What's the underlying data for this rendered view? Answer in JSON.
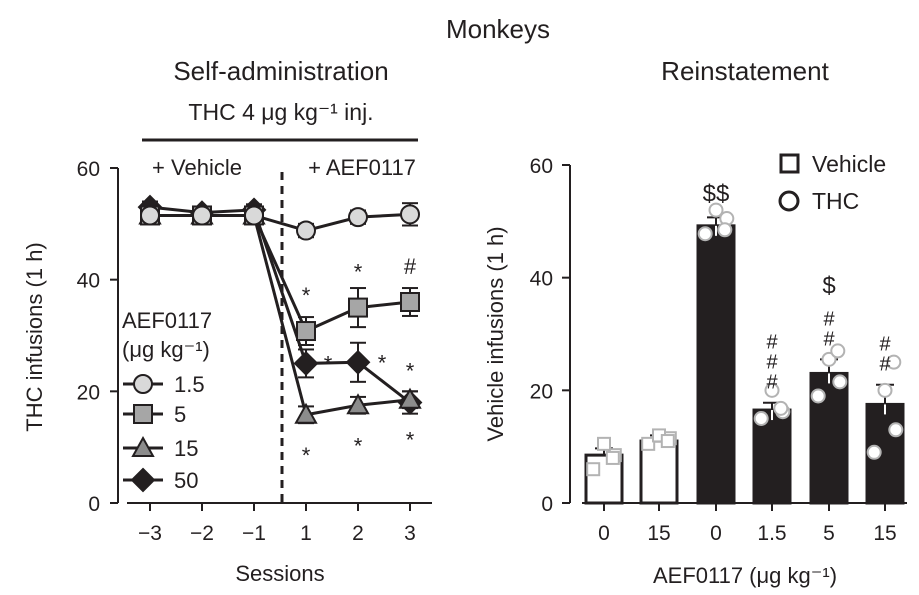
{
  "header": {
    "title": "Monkeys"
  },
  "colors": {
    "ink": "#231f20",
    "light_gray": "#d9d9d9",
    "mid_gray": "#a6a6a6",
    "dark_gray": "#8c8c8c",
    "black": "#231f20",
    "white": "#ffffff",
    "dot_gray": "#b3b3b3"
  },
  "chart_data": [
    {
      "type": "line",
      "title": "Self-administration",
      "subtitle": "THC 4 μg kg⁻¹ inj.",
      "xlabel": "Sessions",
      "ylabel": "THC infusions (1 h)",
      "x": [
        -3,
        -2,
        -1,
        1,
        2,
        3
      ],
      "xticks": [
        "−3",
        "−2",
        "−1",
        "1",
        "2",
        "3"
      ],
      "ylim": [
        0,
        60
      ],
      "yticks": [
        "0",
        "20",
        "40",
        "60"
      ],
      "phase_labels": [
        "+ Vehicle",
        "+ AEF0117"
      ],
      "legend": {
        "title_line1": "AEF0117",
        "title_line2": "(μg kg⁻¹)",
        "placement": "left"
      },
      "series": [
        {
          "name": "1.5",
          "marker": "circle",
          "fill": "#d9d9d9",
          "values": [
            51.5,
            51.5,
            51.5,
            48.8,
            51.2,
            51.7
          ],
          "errors": [
            1.5,
            1.2,
            1.5,
            1.2,
            1.2,
            2.0
          ],
          "annotations": [
            "",
            "",
            "",
            "",
            "",
            ""
          ]
        },
        {
          "name": "5",
          "marker": "square",
          "fill": "#a6a6a6",
          "values": [
            51.5,
            51.5,
            51.5,
            30.8,
            35.0,
            36.0
          ],
          "errors": [
            1.5,
            1.5,
            1.5,
            2.5,
            3.5,
            2.5
          ],
          "annotations": [
            "",
            "",
            "",
            "*",
            "*",
            "#"
          ]
        },
        {
          "name": "15",
          "marker": "triangle",
          "fill": "#8c8c8c",
          "values": [
            51.5,
            51.5,
            51.5,
            15.8,
            17.5,
            18.5
          ],
          "errors": [
            1.5,
            1.5,
            1.5,
            1.5,
            1.5,
            1.5
          ],
          "annotations": [
            "",
            "",
            "",
            "*",
            "*",
            "*"
          ]
        },
        {
          "name": "50",
          "marker": "diamond",
          "fill": "#231f20",
          "values": [
            53.0,
            52.0,
            52.5,
            25.0,
            25.2,
            18.0
          ],
          "errors": [
            1.0,
            1.0,
            1.0,
            2.5,
            3.5,
            2.0
          ],
          "annotations": [
            "",
            "",
            "",
            "*",
            "*",
            "*"
          ]
        }
      ]
    },
    {
      "type": "bar",
      "title": "Reinstatement",
      "xlabel": "AEF0117 (μg kg⁻¹)",
      "ylabel": "Vehicle infusions (1 h)",
      "categories": [
        "0",
        "15",
        "0",
        "1.5",
        "5",
        "15"
      ],
      "ylim": [
        0,
        60
      ],
      "yticks": [
        "0",
        "20",
        "40",
        "60"
      ],
      "legend": {
        "items": [
          "Vehicle",
          "THC"
        ],
        "placement": "top-right"
      },
      "bars": [
        {
          "group": "Vehicle",
          "value": 8.5,
          "error": 1.2,
          "annotation": "",
          "points": [
            6.0,
            8.5,
            10.5,
            8.0
          ]
        },
        {
          "group": "Vehicle",
          "value": 11.0,
          "error": 1.0,
          "annotation": "",
          "points": [
            10.5,
            11.5,
            12.0,
            11.0
          ]
        },
        {
          "group": "THC",
          "value": 49.2,
          "error": 1.5,
          "annotation": "$$",
          "points": [
            47.8,
            50.5,
            52.0,
            48.5
          ]
        },
        {
          "group": "THC",
          "value": 16.5,
          "error": 1.3,
          "annotation": "#\n#\n#",
          "points": [
            15.0,
            16.2,
            20.0,
            16.8
          ]
        },
        {
          "group": "THC",
          "value": 23.0,
          "error": 2.5,
          "annotation": "$\n#\n#",
          "points": [
            19.0,
            21.5,
            25.5,
            27.0
          ]
        },
        {
          "group": "THC",
          "value": 17.5,
          "error": 3.5,
          "annotation": "#\n#",
          "points": [
            9.0,
            13.0,
            20.0,
            25.0
          ]
        }
      ]
    }
  ]
}
